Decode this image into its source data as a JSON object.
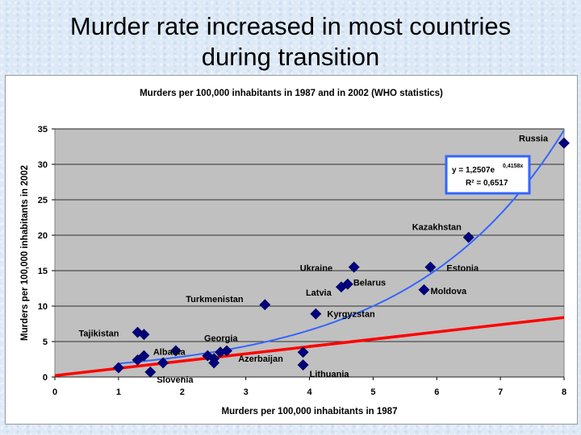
{
  "slide": {
    "title_line1": "Murder rate increased in most countries",
    "title_line2": "during transition"
  },
  "chart_data": {
    "type": "scatter",
    "title": "Murders per 100,000 inhabitants in 1987 and in 2002 (WHO statistics)",
    "xlabel": "Murders per 100,000 inhabitants in 1987",
    "ylabel": "Murders per 100,000 inhabitants in 2002",
    "xlim": [
      0,
      8
    ],
    "ylim": [
      0,
      35
    ],
    "xticks": [
      0,
      1,
      2,
      3,
      4,
      5,
      6,
      7,
      8
    ],
    "yticks": [
      0,
      5,
      10,
      15,
      20,
      25,
      30,
      35
    ],
    "grid": "horizontal",
    "plot_background": "#c0c0c0",
    "marker_color": "#000080",
    "points": [
      {
        "x": 8.0,
        "y": 33.0,
        "label": "Russia"
      },
      {
        "x": 6.5,
        "y": 19.7,
        "label": "Kazakhstan"
      },
      {
        "x": 5.9,
        "y": 15.5,
        "label": "Estonia"
      },
      {
        "x": 5.8,
        "y": 12.3,
        "label": "Moldova"
      },
      {
        "x": 4.7,
        "y": 15.5,
        "label": "Ukraine"
      },
      {
        "x": 4.6,
        "y": 13.1,
        "label": "Belarus"
      },
      {
        "x": 4.5,
        "y": 12.7,
        "label": "Latvia"
      },
      {
        "x": 4.1,
        "y": 8.9,
        "label": "Kyrgyzstan"
      },
      {
        "x": 3.3,
        "y": 10.2,
        "label": "Turkmenistan"
      },
      {
        "x": 3.9,
        "y": 1.7,
        "label": "Lithuania"
      },
      {
        "x": 3.9,
        "y": 3.5,
        "label": ""
      },
      {
        "x": 2.7,
        "y": 3.7,
        "label": "Georgia"
      },
      {
        "x": 2.6,
        "y": 3.5,
        "label": ""
      },
      {
        "x": 2.5,
        "y": 2.6,
        "label": "Azerbaijan"
      },
      {
        "x": 2.4,
        "y": 3.0,
        "label": ""
      },
      {
        "x": 2.5,
        "y": 2.0,
        "label": ""
      },
      {
        "x": 1.9,
        "y": 3.7,
        "label": "Albania"
      },
      {
        "x": 1.3,
        "y": 6.3,
        "label": "Tajikistan"
      },
      {
        "x": 1.4,
        "y": 6.0,
        "label": ""
      },
      {
        "x": 1.4,
        "y": 3.0,
        "label": ""
      },
      {
        "x": 1.3,
        "y": 2.4,
        "label": ""
      },
      {
        "x": 1.7,
        "y": 2.0,
        "label": ""
      },
      {
        "x": 1.0,
        "y": 1.3,
        "label": ""
      },
      {
        "x": 1.5,
        "y": 0.7,
        "label": "Slovenia"
      }
    ],
    "trendlines": [
      {
        "type": "exponential",
        "a": 1.2507,
        "b": 0.4158,
        "color": "#3366ff"
      },
      {
        "type": "linear",
        "x": [
          0,
          8
        ],
        "y": [
          0.2,
          8.4
        ],
        "color": "#ff0000"
      }
    ],
    "equation_box": {
      "line1": "y = 1,2507e",
      "line1_exp": "0,4158x",
      "line2": "R² = 0,6517",
      "border_color": "#3366ff"
    }
  }
}
